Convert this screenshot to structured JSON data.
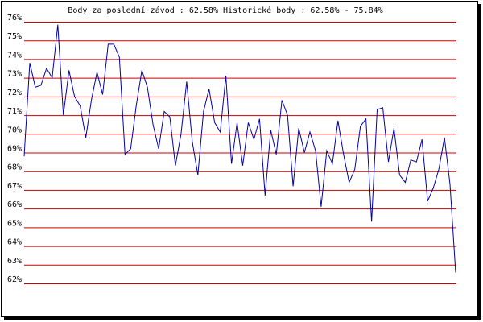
{
  "chart_data": {
    "type": "line",
    "title": "Body za poslední závod : 62.58%  Historické body : 62.58% - 75.84%",
    "values": [
      68.8,
      73.8,
      72.5,
      72.6,
      73.5,
      73.0,
      75.84,
      71.0,
      73.4,
      72.0,
      71.5,
      69.8,
      71.8,
      73.3,
      72.1,
      74.8,
      74.8,
      74.1,
      68.9,
      69.2,
      71.5,
      73.4,
      72.5,
      70.5,
      69.2,
      71.2,
      70.9,
      68.3,
      70.0,
      72.8,
      69.6,
      67.8,
      71.2,
      72.4,
      70.6,
      70.1,
      73.1,
      68.4,
      70.6,
      68.3,
      70.6,
      69.7,
      70.8,
      66.7,
      70.2,
      68.9,
      71.8,
      71.0,
      67.2,
      70.3,
      69.0,
      70.1,
      69.1,
      66.1,
      69.1,
      68.4,
      70.7,
      68.9,
      67.4,
      68.1,
      70.4,
      70.8,
      65.3,
      71.3,
      71.4,
      68.5,
      70.3,
      67.8,
      67.4,
      68.6,
      68.5,
      69.7,
      66.4,
      67.1,
      68.1,
      69.8,
      67.3,
      62.58
    ],
    "color": "#0000aa",
    "grid": true,
    "grid_color": "#cc0000",
    "ylim": [
      62,
      76
    ],
    "yticks": [
      {
        "value": 62,
        "label": "62%"
      },
      {
        "value": 63,
        "label": "63%"
      },
      {
        "value": 64,
        "label": "64%"
      },
      {
        "value": 65,
        "label": "65%"
      },
      {
        "value": 66,
        "label": "66%"
      },
      {
        "value": 67,
        "label": "67%"
      },
      {
        "value": 68,
        "label": "68%"
      },
      {
        "value": 69,
        "label": "69%"
      },
      {
        "value": 70,
        "label": "70%"
      },
      {
        "value": 71,
        "label": "71%"
      },
      {
        "value": 72,
        "label": "72%"
      },
      {
        "value": 73,
        "label": "73%"
      },
      {
        "value": 74,
        "label": "74%"
      },
      {
        "value": 75,
        "label": "75%"
      },
      {
        "value": 76,
        "label": "76%"
      }
    ]
  }
}
